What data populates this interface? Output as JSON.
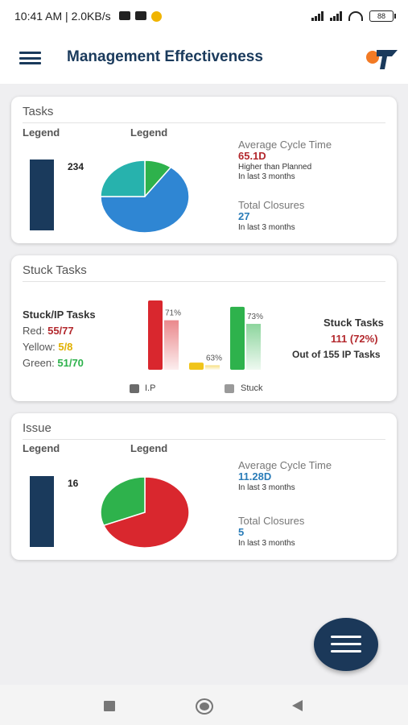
{
  "status_bar": {
    "time_speed": "10:41 AM | 2.0KB/s",
    "battery": "88"
  },
  "app_bar": {
    "title": "Management Effectiveness"
  },
  "tasks": {
    "title": "Tasks",
    "legend_left": "Legend",
    "legend_right": "Legend",
    "count": "234",
    "avg_cycle_title": "Average Cycle Time",
    "avg_cycle_value": "65.1D",
    "avg_cycle_note": "Higher than Planned",
    "avg_cycle_period": "In last 3 months",
    "closures_title": "Total Closures",
    "closures_value": "27",
    "closures_period": "In last 3 months",
    "pie": [
      {
        "label": "green",
        "fraction": 0.1,
        "color": "#2eb24c"
      },
      {
        "label": "blue",
        "fraction": 0.65,
        "color": "#2f86d3"
      },
      {
        "label": "teal",
        "fraction": 0.25,
        "color": "#27b2ad"
      }
    ]
  },
  "stuck": {
    "title": "Stuck Tasks",
    "heading": "Stuck/IP Tasks",
    "red_key": "Red:",
    "red_val": "55/77",
    "yellow_key": "Yellow:",
    "yellow_val": "5/8",
    "green_key": "Green:",
    "green_val": "51/70",
    "right_title": "Stuck Tasks",
    "right_value": "111 (72%)",
    "right_note": "Out of 155 IP Tasks",
    "legend_ip": "I.P",
    "legend_stuck": "Stuck",
    "colors": {
      "red": "#d9272e",
      "yellow": "#f0c419",
      "green": "#2eb24c"
    }
  },
  "stuck_chart": {
    "type": "bar",
    "categories": [
      "Red",
      "Yellow",
      "Green"
    ],
    "series": [
      {
        "name": "I.P",
        "values": [
          77,
          8,
          70
        ]
      },
      {
        "name": "Stuck",
        "values": [
          55,
          5,
          51
        ]
      }
    ],
    "data_labels": [
      "71%",
      "63%",
      "73%"
    ],
    "ylim": [
      0,
      77
    ]
  },
  "issue": {
    "title": "Issue",
    "legend_left": "Legend",
    "legend_right": "Legend",
    "count": "16",
    "avg_cycle_title": "Average Cycle Time",
    "avg_cycle_value": "11.28D",
    "avg_cycle_period": "In last 3 months",
    "closures_title": "Total Closures",
    "closures_value": "5",
    "closures_period": "In last 3 months",
    "pie": [
      {
        "label": "red",
        "fraction": 0.69,
        "color": "#d9272e"
      },
      {
        "label": "green",
        "fraction": 0.31,
        "color": "#2eb24c"
      }
    ]
  },
  "colors": {
    "navy": "#1a3a5c",
    "accent_red": "#b3282d",
    "accent_blue": "#2a7cb8"
  },
  "icons": {
    "menu": "hamburger-icon",
    "logo": "app-logo",
    "fab": "menu-fab-icon"
  }
}
